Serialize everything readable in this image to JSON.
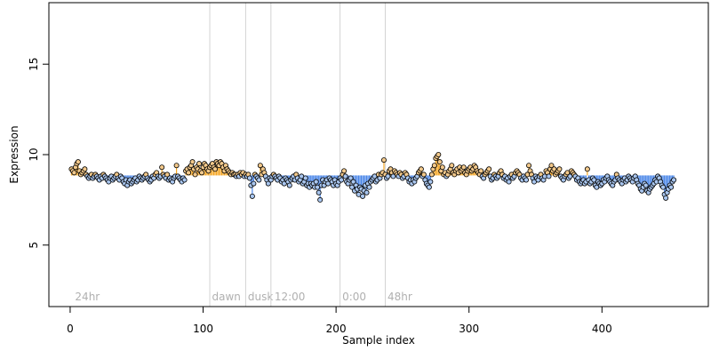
{
  "chart_data": {
    "type": "scatter",
    "title": "",
    "xlabel": "Sample index",
    "ylabel": "Expression",
    "xlim": [
      -16,
      480
    ],
    "ylim": [
      1.6,
      18.4
    ],
    "xticks": [
      0,
      100,
      200,
      300,
      400
    ],
    "yticks": [
      5,
      10,
      15
    ],
    "baseline": 8.85,
    "grid": false,
    "annotations": [
      {
        "label": "24hr",
        "x": 3,
        "line_x": null
      },
      {
        "label": "dawn",
        "x": 106,
        "line_x": 105
      },
      {
        "label": "dusk",
        "x": 133,
        "line_x": 132
      },
      {
        "label": "12:00",
        "x": 153,
        "line_x": 151
      },
      {
        "label": "0:00",
        "x": 204,
        "line_x": 203
      },
      {
        "label": "48hr",
        "x": 238,
        "line_x": 237
      }
    ],
    "colors": {
      "above": "#f5a623",
      "below": "#4a86e8",
      "point_fill_above": "#f3c98b",
      "point_fill_below": "#a9c6ef",
      "marker_line": "#d3d3d3",
      "marker_text": "#b0b0b0",
      "axis": "#000000"
    },
    "series": [
      {
        "start_index": 1,
        "values": [
          9.2,
          9.1,
          9.0,
          9.3,
          9.5,
          9.6,
          9.1,
          8.9,
          9.0,
          9.1,
          9.2,
          8.9,
          8.8,
          8.7,
          8.8,
          8.9,
          8.7,
          8.8,
          8.9,
          8.8,
          8.7,
          8.6,
          8.8,
          8.7,
          8.9,
          8.8,
          8.7,
          8.6,
          8.5,
          8.7,
          8.8,
          8.6,
          8.7,
          8.8,
          8.9,
          8.7,
          8.6,
          8.8,
          8.7,
          8.5,
          8.4,
          8.6,
          8.3,
          8.5,
          8.6,
          8.4,
          8.5,
          8.6,
          8.7,
          8.5,
          8.6,
          8.8,
          8.7,
          8.6,
          8.7,
          8.8,
          8.9,
          8.7,
          8.6,
          8.5,
          8.6,
          8.8,
          8.7,
          8.9,
          9.0,
          8.8,
          8.7,
          8.8,
          9.3,
          8.9,
          8.8,
          8.7,
          8.9,
          8.6,
          8.7,
          8.6,
          8.5,
          8.7,
          8.8,
          9.4,
          8.8,
          8.7,
          8.6,
          8.5,
          8.7,
          8.6,
          9.1,
          9.2,
          9.0,
          9.3,
          9.4,
          9.6,
          9.2,
          8.9,
          9.3,
          9.2,
          9.5,
          9.1,
          9.0,
          9.3,
          9.5,
          9.4,
          9.2,
          9.1,
          9.3,
          9.4,
          9.5,
          9.3,
          9.2,
          9.6,
          9.5,
          9.4,
          9.6,
          9.5,
          9.3,
          9.1,
          9.4,
          9.2,
          9.1,
          9.0,
          8.9,
          9.0,
          8.9,
          8.9,
          8.8,
          8.9,
          8.8,
          9.0,
          8.9,
          9.0,
          8.8,
          8.9,
          8.8,
          8.9,
          8.7,
          8.3,
          7.7,
          8.4,
          8.9,
          8.8,
          8.7,
          8.6,
          9.4,
          8.9,
          9.2,
          9.0,
          8.8,
          8.6,
          8.4,
          8.7,
          8.6,
          8.8,
          8.9,
          8.8,
          8.7,
          8.6,
          8.8,
          8.7,
          8.5,
          8.6,
          8.4,
          8.7,
          8.6,
          8.5,
          8.3,
          8.6,
          8.7,
          8.8,
          8.6,
          8.9,
          8.7,
          8.5,
          8.6,
          8.8,
          8.4,
          8.5,
          8.7,
          8.3,
          8.4,
          8.2,
          8.4,
          8.3,
          8.4,
          8.2,
          8.5,
          8.2,
          7.9,
          7.5,
          8.3,
          8.6,
          8.3,
          8.5,
          8.6,
          8.4,
          8.7,
          8.6,
          8.5,
          8.3,
          8.6,
          8.4,
          8.3,
          8.5,
          8.7,
          8.6,
          8.9,
          9.1,
          8.8,
          8.5,
          8.4,
          8.6,
          8.7,
          8.2,
          8.5,
          8.0,
          8.3,
          8.1,
          7.8,
          8.2,
          8.1,
          7.7,
          8.0,
          8.3,
          7.9,
          8.4,
          8.2,
          8.5,
          8.6,
          8.7,
          8.8,
          8.5,
          8.6,
          8.9,
          8.7,
          8.9,
          9.0,
          9.7,
          8.9,
          8.7,
          8.8,
          9.1,
          9.2,
          9.0,
          8.8,
          9.1,
          9.0,
          8.9,
          8.8,
          9.0,
          8.9,
          8.7,
          8.8,
          9.0,
          8.9,
          8.7,
          8.5,
          8.6,
          8.4,
          8.6,
          8.5,
          8.7,
          8.8,
          9.0,
          9.1,
          9.2,
          8.8,
          8.9,
          8.6,
          8.4,
          8.3,
          8.2,
          8.5,
          8.9,
          9.2,
          9.4,
          9.8,
          9.9,
          10.0,
          9.6,
          9.1,
          9.3,
          8.9,
          9.0,
          8.8,
          8.9,
          9.1,
          9.2,
          9.4,
          9.0,
          8.9,
          9.1,
          9.2,
          9.0,
          9.3,
          9.1,
          9.2,
          9.3,
          9.0,
          8.9,
          9.1,
          9.2,
          9.3,
          9.1,
          9.2,
          9.4,
          9.3,
          9.1,
          9.0,
          8.9,
          9.1,
          8.8,
          8.7,
          8.9,
          9.0,
          9.1,
          9.2,
          8.8,
          8.6,
          8.7,
          8.9,
          8.8,
          8.7,
          8.8,
          9.0,
          9.1,
          8.9,
          8.7,
          8.8,
          8.6,
          8.7,
          8.5,
          8.8,
          8.9,
          8.7,
          8.8,
          9.0,
          9.1,
          9.0,
          8.9,
          8.7,
          8.6,
          8.8,
          8.7,
          8.6,
          8.9,
          9.4,
          9.1,
          8.9,
          8.7,
          8.5,
          8.8,
          8.7,
          8.6,
          8.8,
          8.9,
          8.7,
          8.6,
          8.8,
          9.1,
          9.0,
          8.8,
          9.2,
          9.4,
          9.1,
          9.2,
          8.9,
          9.0,
          9.1,
          9.2,
          8.8,
          8.7,
          8.6,
          8.8,
          8.9,
          9.0,
          8.7,
          8.8,
          9.1,
          9.0,
          8.9,
          8.8,
          8.6,
          8.7,
          8.5,
          8.4,
          8.5,
          8.6,
          8.4,
          8.5,
          9.2,
          8.6,
          8.4,
          8.5,
          8.7,
          8.6,
          8.3,
          8.2,
          8.5,
          8.4,
          8.3,
          8.4,
          8.6,
          8.5,
          8.7,
          8.8,
          8.6,
          8.5,
          8.4,
          8.3,
          8.5,
          8.6,
          8.9,
          8.7,
          8.6,
          8.5,
          8.4,
          8.6,
          8.7,
          8.5,
          8.6,
          8.8,
          8.7,
          8.6,
          8.5,
          8.7,
          8.8,
          8.6,
          8.4,
          8.3,
          8.1,
          8.0,
          8.2,
          8.4,
          8.3,
          8.0,
          7.9,
          8.1,
          8.2,
          8.3,
          8.4,
          8.6,
          8.5,
          8.8,
          8.7,
          8.5,
          8.3,
          8.2,
          7.8,
          7.6,
          7.9,
          8.1,
          8.3,
          8.2,
          8.5,
          8.6
        ]
      }
    ]
  }
}
